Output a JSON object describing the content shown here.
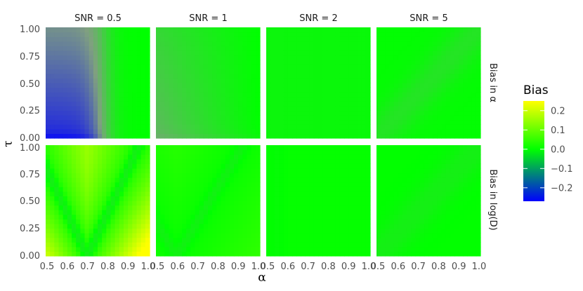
{
  "chart_data": {
    "type": "heatmap",
    "colors": {
      "low": "#0000ff",
      "mid": "#00ff00",
      "high": "#ffff00"
    },
    "xlabel": "α",
    "ylabel": "τ",
    "x_ticks": [
      "0.5",
      "0.6",
      "0.7",
      "0.8",
      "0.9",
      "1.0"
    ],
    "y_ticks": [
      "0.00",
      "0.25",
      "0.50",
      "0.75",
      "1.00"
    ],
    "xlim": [
      0.5,
      1.0
    ],
    "ylim": [
      0.0,
      1.0
    ],
    "columns": [
      {
        "label": "SNR = 0.5",
        "snr": 0.5
      },
      {
        "label": "SNR = 1",
        "snr": 1
      },
      {
        "label": "SNR = 2",
        "snr": 2
      },
      {
        "label": "SNR = 5",
        "snr": 5
      }
    ],
    "rows": [
      {
        "label": "Bias in α"
      },
      {
        "label": "Bias in log(D)"
      }
    ],
    "legend": {
      "title": "Bias",
      "ticks": [
        "0.2",
        "0.1",
        "0.0",
        "−0.1",
        "−0.2"
      ],
      "tick_values": [
        0.2,
        0.1,
        0.0,
        -0.1,
        -0.2
      ],
      "range": [
        -0.27,
        0.25
      ],
      "position": "right"
    }
  }
}
